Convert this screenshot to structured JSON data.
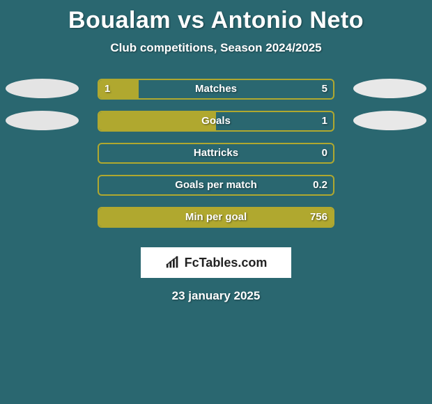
{
  "title": "Boualam vs Antonio Neto",
  "subtitle": "Club competitions, Season 2024/2025",
  "colors": {
    "background": "#2a6770",
    "bar_fill": "#b0a82f",
    "bar_border": "#b0a82f",
    "oval_left": "#e4e4e4",
    "oval_right": "#e8e8e8",
    "text": "#ffffff"
  },
  "rows": [
    {
      "label": "Matches",
      "left_val": "1",
      "right_val": "5",
      "fill_pct": 17,
      "show_left_oval": true,
      "show_right_oval": true
    },
    {
      "label": "Goals",
      "left_val": "",
      "right_val": "1",
      "fill_pct": 50,
      "show_left_oval": true,
      "show_right_oval": true
    },
    {
      "label": "Hattricks",
      "left_val": "",
      "right_val": "0",
      "fill_pct": 0,
      "show_left_oval": false,
      "show_right_oval": false
    },
    {
      "label": "Goals per match",
      "left_val": "",
      "right_val": "0.2",
      "fill_pct": 0,
      "show_left_oval": false,
      "show_right_oval": false
    },
    {
      "label": "Min per goal",
      "left_val": "",
      "right_val": "756",
      "fill_pct": 100,
      "show_left_oval": false,
      "show_right_oval": false
    }
  ],
  "logo_text": "FcTables.com",
  "date": "23 january 2025",
  "fonts": {
    "title_size": 34,
    "subtitle_size": 17,
    "label_size": 15,
    "value_size": 15,
    "date_size": 17
  }
}
